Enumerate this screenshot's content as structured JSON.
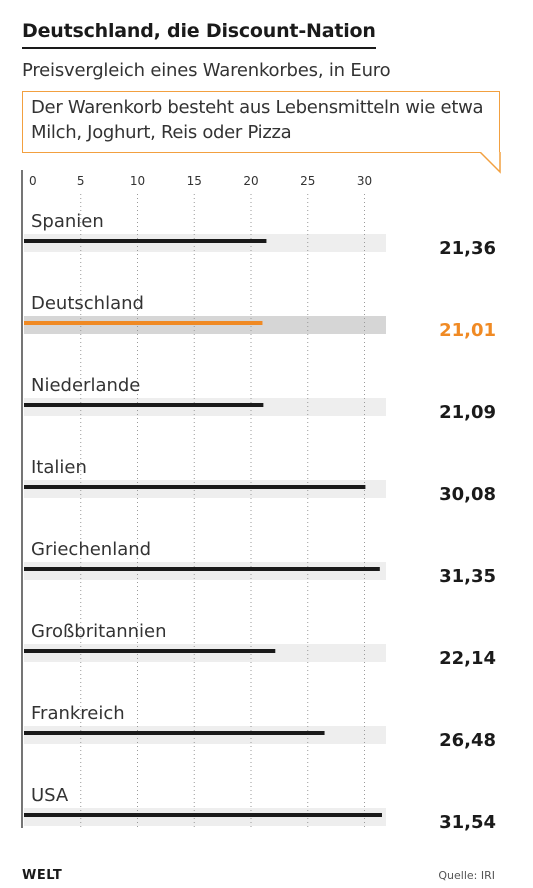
{
  "header": {
    "title": "Deutschland, die Discount-Nation",
    "subtitle": "Preisvergleich eines Warenkorbes, in Euro",
    "note": "Der Warenkorb besteht aus Lebensmitteln wie etwa Milch, Joghurt, Reis oder Pizza"
  },
  "footer": {
    "brand": "WELT",
    "source": "Quelle: IRI"
  },
  "colors": {
    "default_bar": "#1a1a1a",
    "highlight_bar": "#f08a24",
    "track": "#eeeeee",
    "highlight_track": "#d6d6d6",
    "accent": "#f2a040"
  },
  "chart_data": {
    "type": "bar",
    "orientation": "horizontal",
    "categories": [
      "Spanien",
      "Deutschland",
      "Niederlande",
      "Italien",
      "Griechenland",
      "Großbritannien",
      "Frankreich",
      "USA"
    ],
    "values": [
      21.36,
      21.01,
      21.09,
      30.08,
      31.35,
      22.14,
      26.48,
      31.54
    ],
    "value_labels": [
      "21,36",
      "21,01",
      "21,09",
      "30,08",
      "31,35",
      "22,14",
      "26,48",
      "31,54"
    ],
    "highlight": "Deutschland",
    "xlim": [
      0,
      32
    ],
    "xticks": [
      0,
      5,
      10,
      15,
      20,
      25,
      30
    ],
    "xtick_labels": [
      "0",
      "5",
      "10",
      "15",
      "20",
      "25",
      "30"
    ],
    "grid": "dotted vertical",
    "title": "Deutschland, die Discount-Nation",
    "xlabel": "",
    "ylabel": ""
  }
}
